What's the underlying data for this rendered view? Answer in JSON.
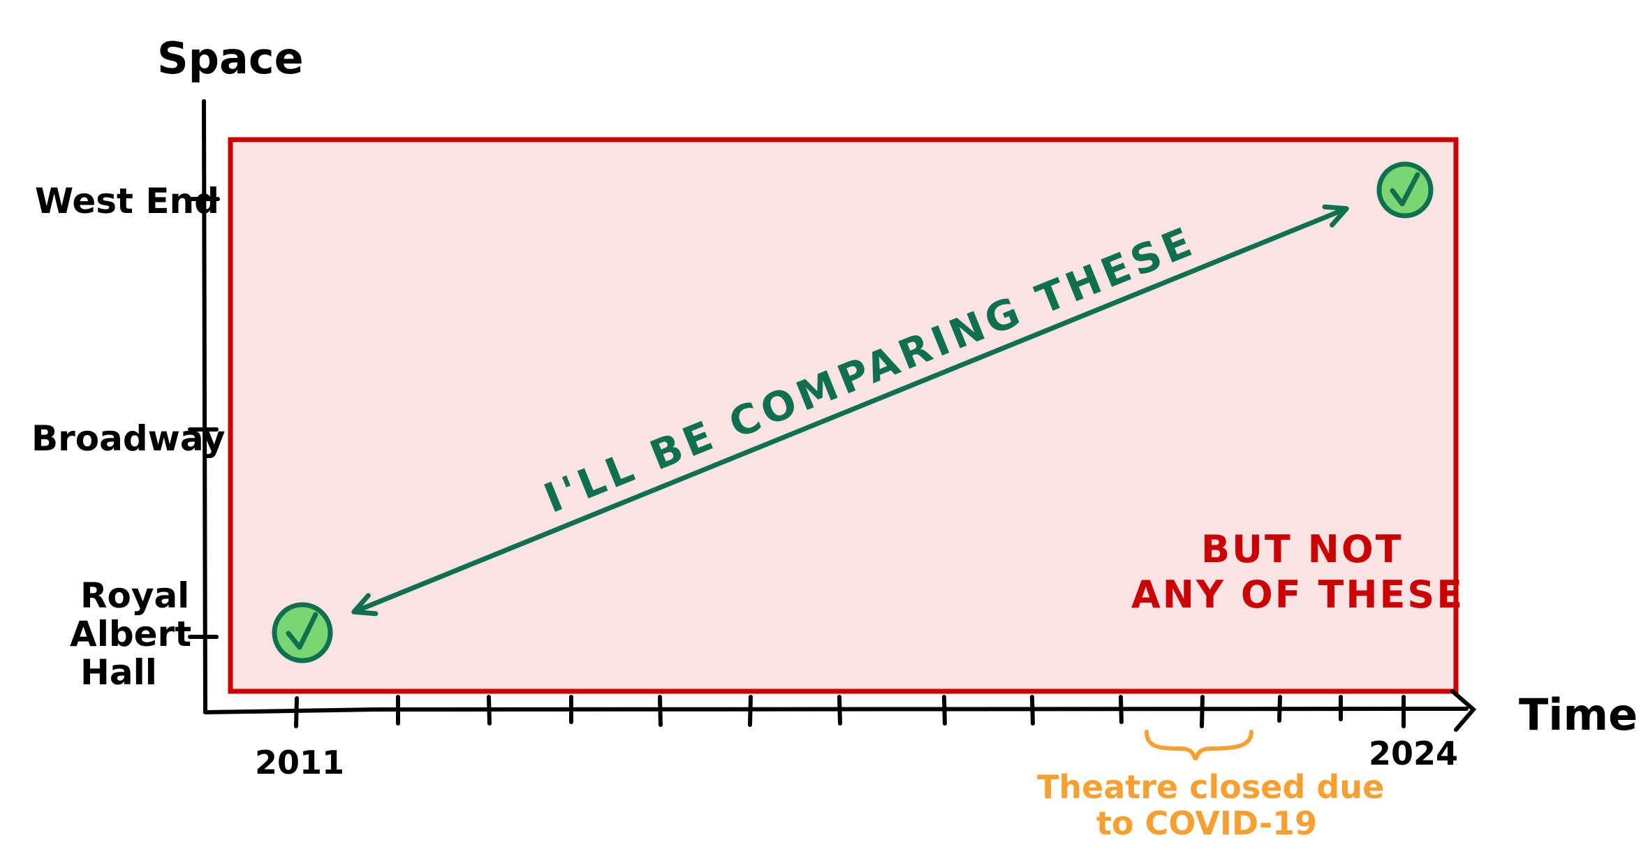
{
  "axes": {
    "y_label": "Space",
    "x_label": "Time",
    "y_ticks": [
      "West End",
      "Broadway",
      "Royal Albert Hall"
    ],
    "y_tick_lines": [
      "Royal",
      "Albert",
      "Hall"
    ],
    "x_start_label": "2011",
    "x_end_label": "2024"
  },
  "region": {
    "label_line1": "BUT NOT",
    "label_line2": "ANY OF THESE",
    "stroke_color": "#cc0000",
    "fill_color": "#f9e3e3"
  },
  "comparison": {
    "label": "I'LL BE COMPARING THESE",
    "color": "#0f7050",
    "marker_color": "#7ad672",
    "marker_icon": "check-icon"
  },
  "annotation": {
    "line1": "Theatre closed due",
    "line2": "to COVID-19",
    "color": "#f5a030"
  }
}
